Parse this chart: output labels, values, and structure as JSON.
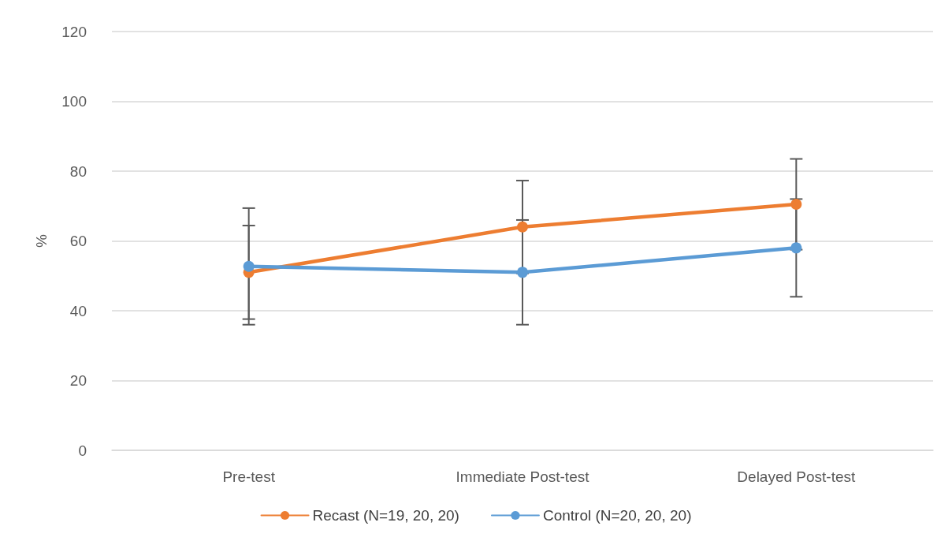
{
  "chart_data": {
    "type": "line",
    "ylabel": "%",
    "categories": [
      "Pre-test",
      "Immediate Post-test",
      "Delayed Post-test"
    ],
    "series": [
      {
        "name": "Recast (N=19, 20, 20)",
        "color": "#ed7d31",
        "values": [
          51,
          64,
          70.5
        ],
        "errors": [
          13.4,
          13.3,
          13
        ]
      },
      {
        "name": "Control (N=20, 20, 20)",
        "color": "#5b9bd5",
        "values": [
          52.7,
          51,
          58
        ],
        "errors": [
          16.7,
          15,
          14
        ]
      }
    ],
    "ylim": [
      0,
      120
    ],
    "yticks": [
      0,
      20,
      40,
      60,
      80,
      100,
      120
    ],
    "grid": "y",
    "legend": "bottom",
    "marker": "circle",
    "line_style": "solid"
  }
}
